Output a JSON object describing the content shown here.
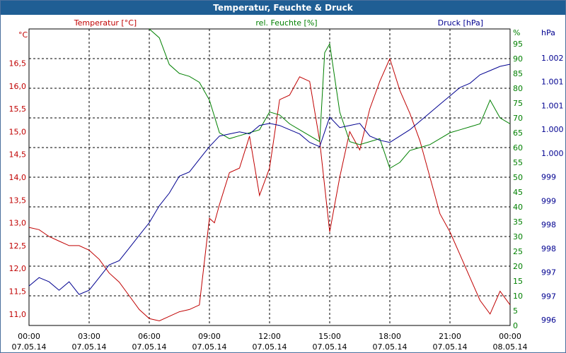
{
  "window": {
    "title": "Temperatur, Feuchte & Druck"
  },
  "colors": {
    "temperature": "#c00000",
    "humidity": "#008000",
    "pressure": "#000090",
    "grid": "#000000",
    "titlebar": "#1f5e94"
  },
  "chart_data": {
    "type": "line",
    "title": "Temperatur, Feuchte & Druck",
    "grid": true,
    "x_ticks": [
      {
        "time": "00:00",
        "date": "07.05.14"
      },
      {
        "time": "03:00",
        "date": "07.05.14"
      },
      {
        "time": "06:00",
        "date": "07.05.14"
      },
      {
        "time": "09:00",
        "date": "07.05.14"
      },
      {
        "time": "12:00",
        "date": "07.05.14"
      },
      {
        "time": "15:00",
        "date": "07.05.14"
      },
      {
        "time": "18:00",
        "date": "07.05.14"
      },
      {
        "time": "21:00",
        "date": "07.05.14"
      },
      {
        "time": "00:00",
        "date": "08.05.14"
      }
    ],
    "axes": {
      "temperature": {
        "title": "Temperatur [°C]",
        "unit": "°C",
        "range": [
          10.75,
          17.25
        ],
        "ticks": [
          "11,0",
          "11,5",
          "12,0",
          "12,5",
          "13,0",
          "13,5",
          "14,0",
          "14,5",
          "15,0",
          "15,5",
          "16,0",
          "16,5"
        ]
      },
      "humidity": {
        "title": "rel. Feuchte [%]",
        "unit": "%",
        "range": [
          0,
          100
        ],
        "ticks": [
          "0",
          "5",
          "10",
          "15",
          "20",
          "25",
          "30",
          "35",
          "40",
          "45",
          "50",
          "55",
          "60",
          "65",
          "70",
          "75",
          "80",
          "85",
          "90",
          "95"
        ]
      },
      "pressure": {
        "title": "Druck [hPa]",
        "unit": "hPa",
        "ticks": [
          "996",
          "997",
          "997",
          "998",
          "998",
          "999",
          "999",
          "1.000",
          "1.000",
          "1.001",
          "1.001",
          "1.002"
        ]
      }
    },
    "series": [
      {
        "name": "Temperatur [°C]",
        "axis": "temperature",
        "x": [
          0,
          0.5,
          1,
          1.5,
          2,
          2.5,
          3,
          3.5,
          4,
          4.5,
          5,
          5.5,
          6,
          6.5,
          7,
          7.5,
          8,
          8.5,
          9,
          9.25,
          9.5,
          10,
          10.5,
          11,
          11.5,
          12,
          12.5,
          13,
          13.5,
          14,
          14.5,
          15,
          15.5,
          16,
          16.5,
          17,
          17.5,
          18,
          18.5,
          19,
          19.5,
          20,
          20.5,
          21,
          21.5,
          22,
          22.5,
          23,
          23.5,
          24
        ],
        "y": [
          12.9,
          12.85,
          12.7,
          12.6,
          12.5,
          12.5,
          12.4,
          12.2,
          11.9,
          11.7,
          11.4,
          11.1,
          10.9,
          10.85,
          10.95,
          11.05,
          11.1,
          11.2,
          13.1,
          13.0,
          13.4,
          14.1,
          14.2,
          14.9,
          13.6,
          14.2,
          15.7,
          15.8,
          16.2,
          16.1,
          14.8,
          12.8,
          14.0,
          15.0,
          14.6,
          15.5,
          16.1,
          16.6,
          15.9,
          15.4,
          14.8,
          14.0,
          13.2,
          12.8,
          12.3,
          11.8,
          11.3,
          11.0,
          11.5,
          11.2
        ]
      },
      {
        "name": "rel. Feuchte [%]",
        "axis": "humidity",
        "x": [
          6,
          6.5,
          7,
          7.5,
          8,
          8.5,
          9,
          9.5,
          10,
          10.5,
          11,
          11.5,
          12,
          12.5,
          13,
          13.5,
          14,
          14.5,
          14.75,
          15,
          15.5,
          16,
          16.5,
          17,
          17.5,
          18,
          18.5,
          19,
          19.5,
          20,
          20.5,
          21,
          21.5,
          22,
          22.5,
          23,
          23.5,
          24
        ],
        "y": [
          100,
          97,
          88,
          85,
          84,
          82,
          76,
          65,
          63,
          64,
          65,
          66,
          72,
          71,
          68,
          66,
          64,
          62,
          92,
          95,
          72,
          62,
          61,
          62,
          63,
          53,
          55,
          59,
          60,
          61,
          63,
          65,
          66,
          67,
          68,
          76,
          70,
          68
        ]
      },
      {
        "name": "Druck [hPa]",
        "axis": "pressure",
        "x": [
          0,
          0.5,
          1,
          1.5,
          2,
          2.5,
          3,
          3.5,
          4,
          4.5,
          5,
          5.5,
          6,
          6.5,
          7,
          7.5,
          8,
          8.5,
          9,
          9.5,
          10,
          10.5,
          11,
          11.5,
          12,
          12.5,
          13,
          13.5,
          14,
          14.5,
          15,
          15.5,
          16,
          16.5,
          17,
          17.5,
          18,
          18.5,
          19,
          19.5,
          20,
          20.5,
          21,
          21.5,
          22,
          22.5,
          23,
          23.5,
          24
        ],
        "y": [
          996.8,
          997.0,
          996.9,
          996.7,
          996.9,
          996.6,
          996.7,
          997.0,
          997.3,
          997.4,
          997.7,
          998.0,
          998.3,
          998.7,
          999.0,
          999.4,
          999.5,
          999.8,
          1000.1,
          1000.35,
          1000.4,
          1000.45,
          1000.4,
          1000.6,
          1000.65,
          1000.6,
          1000.5,
          1000.4,
          1000.2,
          1000.1,
          1000.8,
          1000.55,
          1000.6,
          1000.65,
          1000.35,
          1000.25,
          1000.2,
          1000.35,
          1000.5,
          1000.7,
          1000.9,
          1001.1,
          1001.3,
          1001.5,
          1001.6,
          1001.8,
          1001.9,
          1002.0,
          1002.05
        ]
      }
    ]
  }
}
